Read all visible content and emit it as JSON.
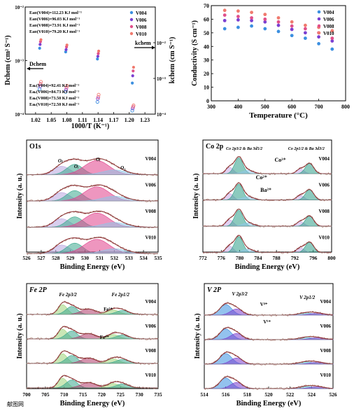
{
  "chart_data": [
    {
      "type": "scatter",
      "xlabel": "1000/T (K⁻¹)",
      "ylabel": "Dchem (cm² S⁻¹)",
      "ylabel_right": "kchem (cm S⁻¹)",
      "ylog": true,
      "xlim": [
        1.0,
        1.25
      ],
      "ylim_left": [
        0.0001,
        0.01
      ],
      "ylim_right": [
        0.0001,
        0.1
      ],
      "xticks": [
        "1.02",
        "1.05",
        "1.08",
        "1.11",
        "1.14",
        "1.17",
        "1.20",
        "1.23"
      ],
      "yticks_left": [
        "10⁻⁴",
        "10⁻³",
        "10⁻²"
      ],
      "yticks_right": [
        "10⁻⁴",
        "10⁻³",
        "10⁻²"
      ],
      "legend": [
        "V004",
        "V006",
        "V008",
        "V010"
      ],
      "colors": [
        "#3b8fe0",
        "#7b3fd0",
        "#e0508a",
        "#f07a6e"
      ],
      "annot_D": [
        "Eaᴅ(V004)=112.23 KJ mol⁻¹",
        "Eaᴅ(V006)=96.03 KJ mol⁻¹",
        "Eaᴅ(V008)=73.91 KJ mol⁻¹",
        "Eaᴅ(V010)=79.20 KJ mol⁻¹"
      ],
      "annot_k": [
        "Eaₖ(V004)=92.41 KJ mol⁻¹",
        "Eaₖ(V006)=84.73 KJ mol⁻¹",
        "Eaₖ(V008)=73.50 KJ mol⁻¹",
        "Eaₖ(V010)=72.50 KJ mol⁻¹"
      ],
      "label_D": "Dchem",
      "label_k": "kchem",
      "x": [
        1.029,
        1.079,
        1.14,
        1.207
      ],
      "series_D": [
        {
          "name": "V004",
          "values": [
            0.0017,
            0.00145,
            0.00107,
            0.00038
          ]
        },
        {
          "name": "V006",
          "values": [
            0.002,
            0.0016,
            0.0012,
            0.00052
          ]
        },
        {
          "name": "V008",
          "values": [
            0.00225,
            0.0018,
            0.00135,
            0.00064
          ]
        },
        {
          "name": "V010",
          "values": [
            0.00245,
            0.00195,
            0.0015,
            0.00075
          ]
        }
      ],
      "series_k": [
        {
          "name": "V004",
          "values": [
            0.0005,
            0.00042,
            0.00022,
            0.000125
          ]
        },
        {
          "name": "V006",
          "values": [
            0.0006,
            0.00048,
            0.00027,
            0.000145
          ]
        },
        {
          "name": "V008",
          "values": [
            0.0007,
            0.00055,
            0.0003,
            0.00016
          ]
        },
        {
          "name": "V010",
          "values": [
            0.0008,
            0.00062,
            0.00035,
            0.000175
          ]
        }
      ]
    },
    {
      "type": "scatter",
      "xlabel": "Temperature (°C)",
      "ylabel": "Conductivity (S cm⁻¹)",
      "xlim": [
        300,
        800
      ],
      "ylim": [
        0,
        70
      ],
      "xticks": [
        300,
        400,
        500,
        600,
        700,
        800
      ],
      "yticks": [
        0,
        10,
        20,
        30,
        40,
        50,
        60,
        70
      ],
      "legend": [
        "V004",
        "V006",
        "V008",
        "V010"
      ],
      "colors": [
        "#3b8fe0",
        "#7b3fd0",
        "#e0508a",
        "#f07a6e"
      ],
      "x": [
        350,
        400,
        450,
        500,
        550,
        600,
        650,
        700,
        750
      ],
      "series": [
        {
          "name": "V004",
          "values": [
            53.0,
            54.0,
            55.0,
            53.0,
            51.0,
            48.0,
            46.0,
            42.0,
            38.0
          ]
        },
        {
          "name": "V006",
          "values": [
            59.0,
            59.5,
            59.0,
            58.0,
            55.5,
            52.5,
            50.0,
            47.0,
            44.0
          ]
        },
        {
          "name": "V008",
          "values": [
            63.0,
            62.0,
            61.0,
            60.0,
            58.0,
            55.0,
            53.0,
            50.0,
            46.0
          ]
        },
        {
          "name": "V010",
          "values": [
            66.5,
            66.0,
            65.0,
            63.5,
            61.0,
            58.0,
            55.5,
            54.0,
            51.5
          ]
        }
      ]
    },
    {
      "type": "line",
      "title": "O1s",
      "xlabel": "Binding Energy (eV)",
      "ylabel": "Intensity (a. u.)",
      "xlim": [
        526,
        535
      ],
      "xticks": [
        526,
        527,
        528,
        529,
        530,
        531,
        532,
        533,
        534,
        535
      ],
      "samples": [
        "V004",
        "V006",
        "V008",
        "V010"
      ],
      "peak_labels": [
        "Oₗ",
        "Oᵢ",
        "O₂"
      ],
      "peaks": [
        528.4,
        529.1,
        530.8,
        531.8
      ]
    },
    {
      "type": "line",
      "title": "Co 2p",
      "xlabel": "Binding Energy (eV)",
      "ylabel": "Intensity (a. u.)",
      "xlim": [
        772,
        800
      ],
      "xticks": [
        772,
        776,
        780,
        784,
        788,
        792,
        796,
        800
      ],
      "samples": [
        "V004",
        "V006",
        "V008",
        "V010"
      ],
      "annotations": [
        "Co 2p3/2 & Ba 3d5/2",
        "Co 2p1/2 & Ba 3d3/2",
        "Co³⁺",
        "Co²⁺",
        "Ba²⁺"
      ],
      "peaks": [
        777.8,
        779.8,
        793.2,
        795.2
      ]
    },
    {
      "type": "line",
      "title": "Fe 2P",
      "xlabel": "Binding Energy (eV)",
      "ylabel": "Intensity (a. u.)",
      "xlim": [
        700,
        735
      ],
      "xticks": [
        700,
        705,
        710,
        715,
        720,
        725,
        730,
        735
      ],
      "samples": [
        "V004",
        "V006",
        "V008",
        "V010"
      ],
      "annotations": [
        "Fe 2p3/2",
        "Fe 2p1/2",
        "Fe³⁺",
        "Fe⁴⁺"
      ],
      "peaks": [
        709.8,
        712.0,
        716.5,
        723.0
      ]
    },
    {
      "type": "line",
      "title": "V 2P",
      "xlabel": "Binding Energy (eV)",
      "ylabel": "Intensity (a. u.)",
      "xlim": [
        514,
        526
      ],
      "xticks": [
        514,
        516,
        518,
        520,
        522,
        524,
        526
      ],
      "samples": [
        "V004",
        "V006",
        "V008",
        "V010"
      ],
      "annotations": [
        "V 2p3/2",
        "V 2p1/2",
        "V⁴⁺",
        "V⁵⁺"
      ],
      "peaks": [
        516.0,
        517.0,
        523.5
      ]
    }
  ],
  "watermark": "献图网"
}
